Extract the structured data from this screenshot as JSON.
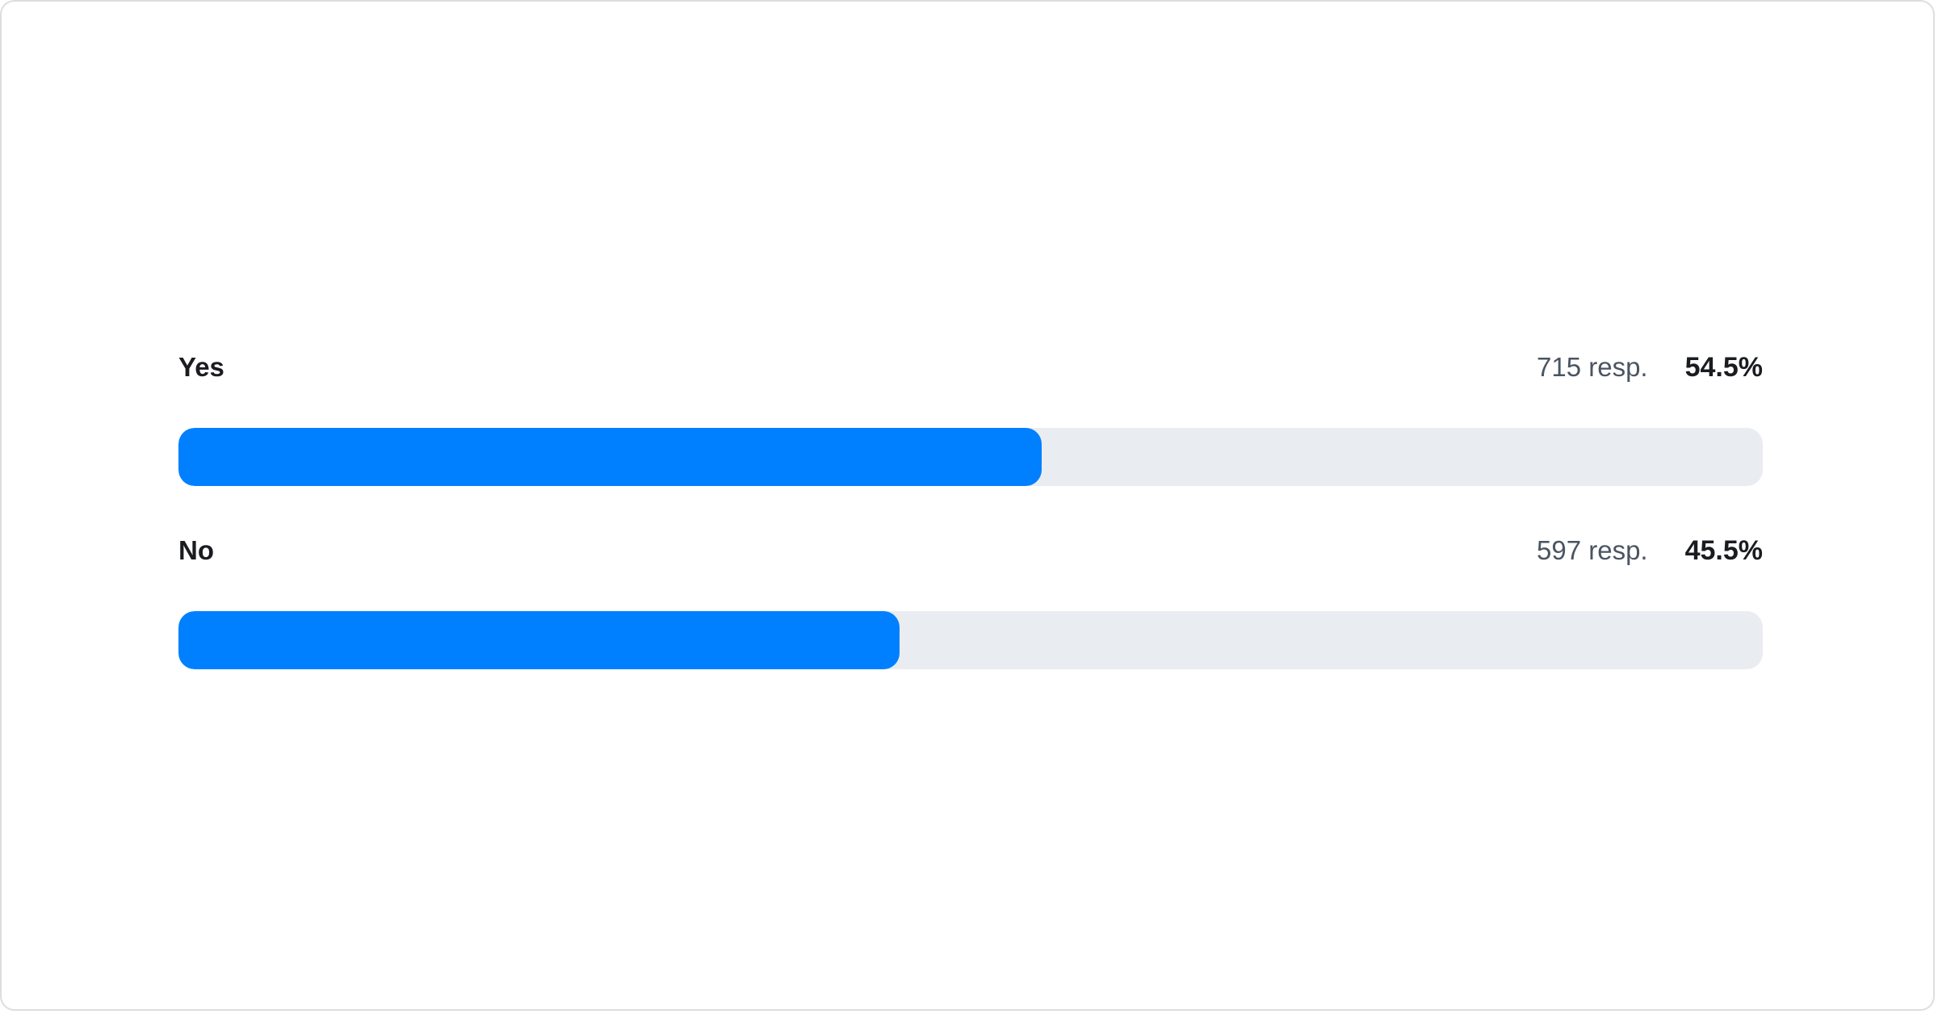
{
  "chart_data": {
    "type": "bar",
    "orientation": "horizontal",
    "categories": [
      "Yes",
      "No"
    ],
    "series": [
      {
        "values": [
          54.5,
          45.5
        ]
      }
    ],
    "responses": [
      "715 resp.",
      "597 resp."
    ],
    "percent_labels": [
      "54.5%",
      "45.5%"
    ],
    "xlim": [
      0,
      100
    ],
    "grid": false,
    "colors": {
      "fill": "#0080ff",
      "track": "#e9ecf1"
    }
  }
}
